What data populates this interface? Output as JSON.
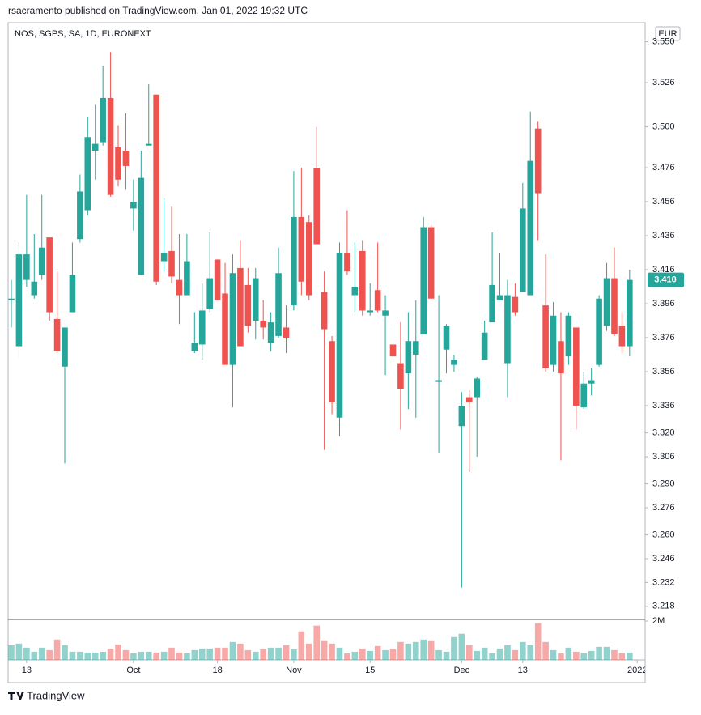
{
  "chart_data": {
    "type": "candlestick",
    "header": "rsacramento published on TradingView.com, Jan 01, 2022 19:32 UTC",
    "title": "NOS, SGPS, SA, 1D, EURONEXT",
    "currency": "EUR",
    "footer": "TradingView",
    "last_label": "3.410",
    "up_color": "#26a69a",
    "down_color": "#ef5350",
    "open": [
      3.398,
      3.371,
      3.41,
      3.401,
      3.413,
      3.435,
      3.387,
      3.359,
      3.391,
      3.434,
      3.451,
      3.486,
      3.491,
      3.517,
      3.488,
      3.486,
      3.452,
      3.413,
      3.489,
      3.519,
      3.421,
      3.427,
      3.41,
      3.401,
      3.368,
      3.372,
      3.393,
      3.422,
      3.402,
      3.36,
      3.417,
      3.407,
      3.386,
      3.386,
      3.373,
      3.377,
      3.382,
      3.395,
      3.447,
      3.444,
      3.476,
      3.403,
      3.374,
      3.329,
      3.426,
      3.401,
      3.427,
      3.391,
      3.404,
      3.389,
      3.372,
      3.361,
      3.355,
      3.366,
      3.378,
      3.441,
      3.35,
      3.369,
      3.36,
      3.324,
      3.341,
      3.341,
      3.363,
      3.385,
      3.398,
      3.361,
      3.4,
      3.403,
      3.401,
      3.499,
      3.395,
      3.36,
      3.374,
      3.365,
      3.382,
      3.335,
      3.349,
      3.36,
      3.383,
      3.411,
      3.383,
      3.371
    ],
    "high": [
      3.41,
      3.432,
      3.46,
      3.437,
      3.46,
      3.435,
      3.415,
      3.382,
      3.432,
      3.472,
      3.506,
      3.513,
      3.536,
      3.544,
      3.501,
      3.508,
      3.469,
      3.486,
      3.525,
      3.519,
      3.458,
      3.453,
      3.437,
      3.437,
      3.391,
      3.408,
      3.438,
      3.422,
      3.42,
      3.425,
      3.433,
      3.417,
      3.417,
      3.398,
      3.391,
      3.429,
      3.395,
      3.474,
      3.476,
      3.448,
      3.5,
      3.415,
      3.377,
      3.432,
      3.451,
      3.432,
      3.433,
      3.408,
      3.432,
      3.401,
      3.384,
      3.385,
      3.391,
      3.398,
      3.447,
      3.442,
      3.401,
      3.384,
      3.366,
      3.344,
      3.345,
      3.353,
      3.386,
      3.438,
      3.426,
      3.41,
      3.408,
      3.467,
      3.509,
      3.503,
      3.425,
      3.397,
      3.391,
      3.391,
      3.382,
      3.356,
      3.358,
      3.401,
      3.42,
      3.429,
      3.391,
      3.416
    ],
    "low": [
      3.382,
      3.365,
      3.406,
      3.399,
      3.41,
      3.386,
      3.367,
      3.302,
      3.391,
      3.432,
      3.448,
      3.469,
      3.489,
      3.459,
      3.465,
      3.463,
      3.439,
      3.413,
      3.489,
      3.407,
      3.415,
      3.408,
      3.384,
      3.401,
      3.367,
      3.363,
      3.391,
      3.398,
      3.36,
      3.335,
      3.371,
      3.379,
      3.375,
      3.375,
      3.368,
      3.376,
      3.367,
      3.392,
      3.401,
      3.398,
      3.431,
      3.31,
      3.331,
      3.318,
      3.413,
      3.391,
      3.389,
      3.389,
      3.391,
      3.354,
      3.363,
      3.322,
      3.334,
      3.329,
      3.378,
      3.399,
      3.308,
      3.355,
      3.356,
      3.229,
      3.297,
      3.306,
      3.363,
      3.385,
      3.398,
      3.341,
      3.389,
      3.403,
      3.401,
      3.433,
      3.356,
      3.356,
      3.304,
      3.36,
      3.322,
      3.334,
      3.342,
      3.359,
      3.38,
      3.377,
      3.367,
      3.365
    ],
    "close": [
      3.399,
      3.425,
      3.425,
      3.409,
      3.429,
      3.391,
      3.368,
      3.382,
      3.413,
      3.462,
      3.494,
      3.49,
      3.517,
      3.46,
      3.469,
      3.477,
      3.456,
      3.47,
      3.49,
      3.409,
      3.426,
      3.412,
      3.401,
      3.421,
      3.373,
      3.392,
      3.411,
      3.398,
      3.36,
      3.414,
      3.371,
      3.383,
      3.411,
      3.382,
      3.385,
      3.414,
      3.376,
      3.447,
      3.409,
      3.401,
      3.431,
      3.381,
      3.338,
      3.426,
      3.415,
      3.406,
      3.392,
      3.392,
      3.392,
      3.392,
      3.365,
      3.346,
      3.374,
      3.374,
      3.441,
      3.399,
      3.351,
      3.383,
      3.363,
      3.336,
      3.338,
      3.352,
      3.379,
      3.407,
      3.401,
      3.401,
      3.391,
      3.452,
      3.48,
      3.461,
      3.358,
      3.389,
      3.355,
      3.389,
      3.336,
      3.349,
      3.351,
      3.399,
      3.411,
      3.378,
      3.371,
      3.41
    ],
    "volume": [
      756000,
      840000,
      630000,
      420000,
      630000,
      504000,
      1050000,
      756000,
      420000,
      420000,
      378000,
      378000,
      420000,
      588000,
      798000,
      504000,
      336000,
      420000,
      420000,
      378000,
      420000,
      630000,
      378000,
      336000,
      504000,
      588000,
      588000,
      630000,
      630000,
      924000,
      840000,
      504000,
      420000,
      546000,
      630000,
      630000,
      756000,
      546000,
      1470000,
      840000,
      1764000,
      1008000,
      840000,
      630000,
      336000,
      420000,
      588000,
      462000,
      714000,
      504000,
      546000,
      924000,
      840000,
      924000,
      1050000,
      1008000,
      504000,
      420000,
      1176000,
      1344000,
      756000,
      462000,
      630000,
      336000,
      588000,
      756000,
      504000,
      924000,
      756000,
      1890000,
      924000,
      504000,
      336000,
      630000,
      420000,
      336000,
      462000,
      672000,
      672000,
      504000,
      336000,
      378000
    ],
    "ylim": [
      3.2103,
      3.5603
    ],
    "yticks": [
      {
        "value": 3.55,
        "label": "3.550"
      },
      3.526,
      {
        "value": 3.5,
        "label": "3.500"
      },
      3.476,
      3.456,
      3.436,
      3.416,
      3.396,
      3.376,
      3.356,
      3.336,
      {
        "value": 3.32,
        "label": "3.320"
      },
      3.306,
      {
        "value": 3.29,
        "label": "3.290"
      },
      3.276,
      {
        "value": 3.26,
        "label": "3.260"
      },
      3.246,
      3.232,
      3.218
    ],
    "volume_lim": [
      0,
      2000000
    ],
    "volume_ticks": [
      {
        "value": 2000000,
        "label": "2M"
      }
    ],
    "xticks": [
      {
        "value": 2,
        "label": "13"
      },
      {
        "value": 16,
        "label": "Oct"
      },
      {
        "value": 27,
        "label": "18"
      },
      {
        "value": 37,
        "label": "Nov"
      },
      {
        "value": 47,
        "label": "15"
      },
      {
        "value": 59,
        "label": "Dec"
      },
      {
        "value": 67,
        "label": "13"
      },
      {
        "value": 82,
        "label": "2022"
      }
    ]
  }
}
